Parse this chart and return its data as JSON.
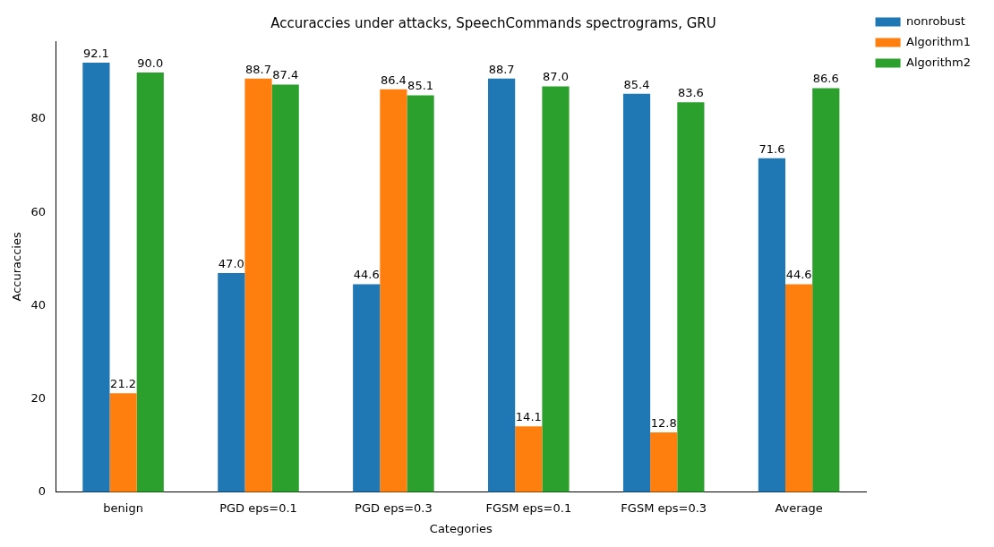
{
  "chart_data": {
    "type": "bar",
    "title": "Accuraccies under attacks, SpeechCommands spectrograms, GRU",
    "xlabel": "Categories",
    "ylabel": "Accuraccies",
    "categories": [
      "benign",
      "PGD eps=0.1",
      "PGD eps=0.3",
      "FGSM eps=0.1",
      "FGSM eps=0.3",
      "Average"
    ],
    "series": [
      {
        "name": "nonrobust",
        "color": "#1f77b4",
        "values": [
          92.1,
          47,
          44.6,
          88.7,
          85.4,
          71.6
        ],
        "value_labels": [
          "92.1",
          "47.0",
          "44.6",
          "88.7",
          "85.4",
          "71.6"
        ]
      },
      {
        "name": "Algorithm1",
        "color": "#ff7f0e",
        "values": [
          21.2,
          88.7,
          86.4,
          14.1,
          12.8,
          44.6
        ],
        "value_labels": [
          "21.2",
          "88.7",
          "86.4",
          "14.1",
          "12.8",
          "44.6"
        ]
      },
      {
        "name": "Algorithm2",
        "color": "#2ca02c",
        "values": [
          90,
          87.4,
          85.1,
          87,
          83.6,
          86.6
        ],
        "value_labels": [
          "90.0",
          "87.4",
          "85.1",
          "87.0",
          "83.6",
          "86.6"
        ]
      }
    ],
    "ylim": [
      0,
      96.7
    ],
    "yticks": [
      0,
      20,
      40,
      60,
      80
    ],
    "grid": false,
    "legend": "top right"
  }
}
